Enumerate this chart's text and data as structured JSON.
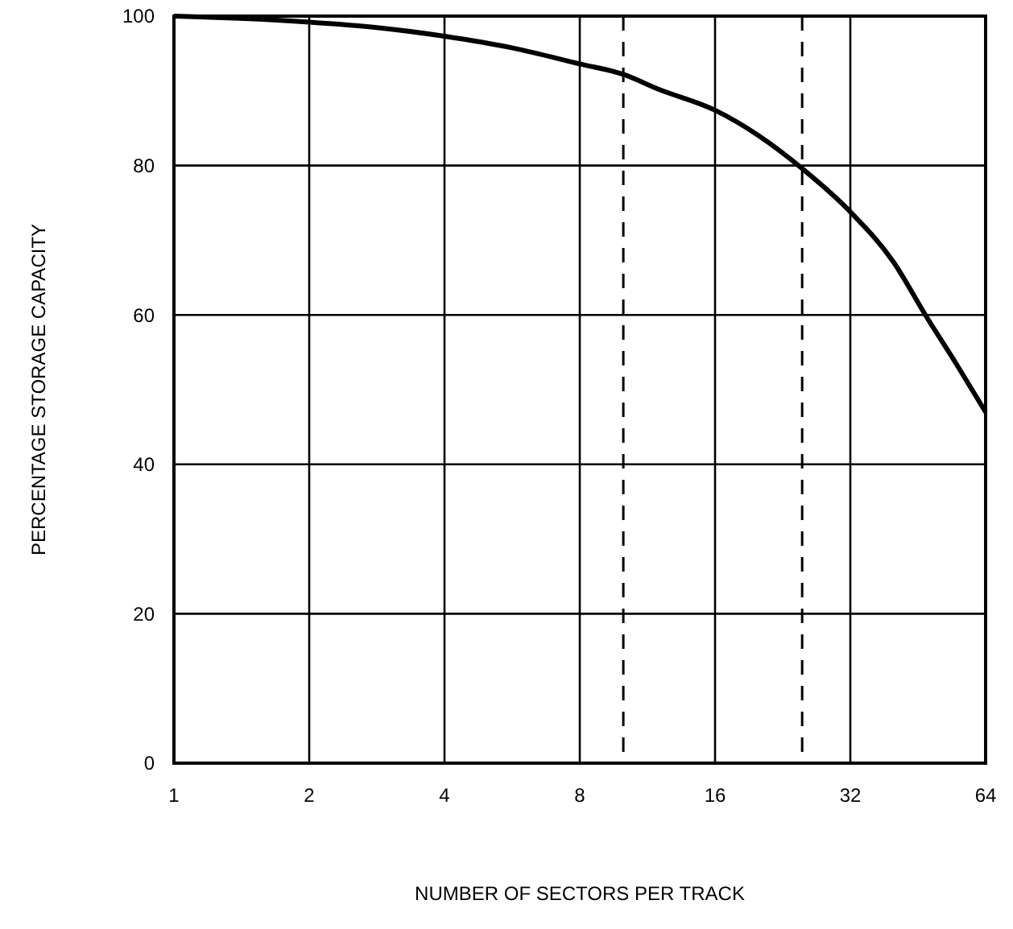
{
  "chart_data": {
    "type": "line",
    "xlabel": "NUMBER OF SECTORS PER TRACK",
    "ylabel": "PERCENTAGE STORAGE CAPACITY",
    "log": "x",
    "x": [
      1,
      1.4,
      2,
      2.8,
      4,
      5.7,
      8,
      10,
      12,
      16,
      20,
      25,
      32,
      40,
      47,
      55,
      64
    ],
    "series": [
      {
        "color": "#000000",
        "values": [
          100,
          99.7,
          99.2,
          98.5,
          97.3,
          95.7,
          93.6,
          92.2,
          90.2,
          87.4,
          84,
          79.6,
          73.8,
          67,
          60,
          53.5,
          47
        ]
      }
    ],
    "xlim": [
      1,
      64
    ],
    "xticks": [
      1,
      2,
      4,
      8,
      16,
      32,
      64
    ],
    "ylim": [
      0,
      100
    ],
    "yticks": [
      0,
      20,
      40,
      60,
      80,
      100
    ],
    "grid": true,
    "marker": "none",
    "line_style": "solid",
    "ref_lines": [
      {
        "axis": "x",
        "value": 10,
        "line_style": "dashed",
        "color": "#000000"
      },
      {
        "axis": "x",
        "value": 25,
        "line_style": "dashed",
        "color": "#000000"
      }
    ]
  }
}
